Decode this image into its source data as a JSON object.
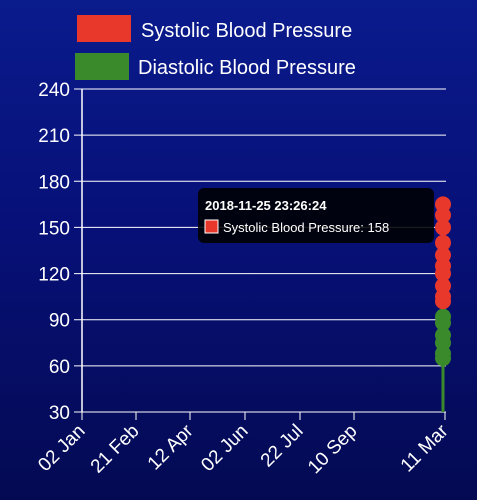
{
  "chart_data": {
    "type": "scatter",
    "title": "",
    "xlabel": "",
    "ylabel": "",
    "ylim": [
      30,
      240
    ],
    "y_ticks": [
      30,
      60,
      90,
      120,
      150,
      180,
      210,
      240
    ],
    "x_tick_labels": [
      "02 Jan",
      "21 Feb",
      "12 Apr",
      "02 Jun",
      "22 Jul",
      "10 Sep",
      "11 Mar"
    ],
    "grid": "horizontal",
    "legend_position": "top",
    "series": [
      {
        "name": "Systolic Blood Pressure",
        "color": "#e8382c",
        "values": [
          165,
          158,
          150,
          140,
          132,
          125,
          120,
          112,
          105,
          102
        ]
      },
      {
        "name": "Diastolic Blood Pressure",
        "color": "#3a8a2c",
        "values": [
          92,
          88,
          80,
          75,
          68,
          65
        ]
      }
    ],
    "tooltip": {
      "title": "2018-11-25 23:26:24",
      "series": "Systolic Blood Pressure",
      "value": "158",
      "label": "Systolic Blood Pressure: 158"
    }
  }
}
